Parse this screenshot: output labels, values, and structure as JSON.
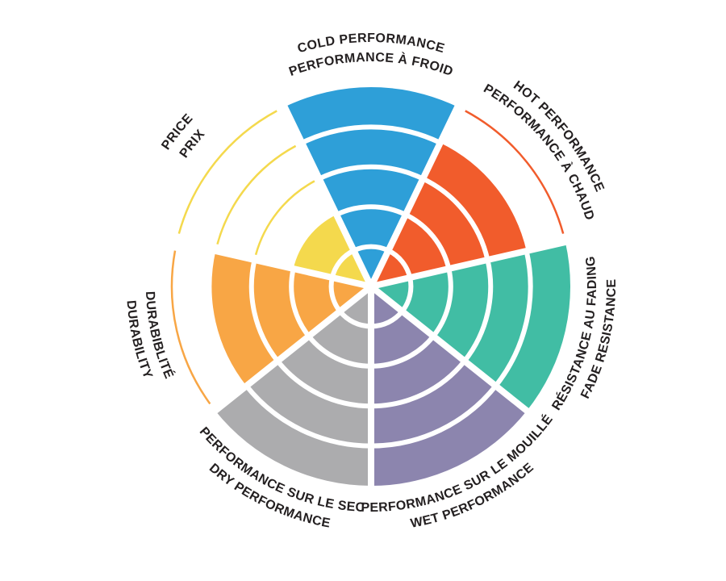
{
  "page": {
    "background": "#FFFFFF"
  },
  "chart_data": {
    "type": "polar-bar",
    "polar": true,
    "title": "",
    "max_rings": 5,
    "start_angle_deg": 90,
    "direction": "clockwise",
    "grid": "white concentric ring separators inside filled wedges; unfilled ring levels drawn as thin colored arcs",
    "legend_position": "radial bilingual labels around circle (english outer line, french inner line)",
    "label_text_color": "#231F20",
    "separator_color": "#FFFFFF",
    "categories": [
      {
        "key": "cold",
        "label_en": "COLD PERFORMANCE",
        "label_fr": "PERFORMANCE À FROID",
        "value": 5,
        "color": "#2E9FD8"
      },
      {
        "key": "hot",
        "label_en": "HOT PERFORMANCE",
        "label_fr": "PERFORMANCE À CHAUD",
        "value": 4,
        "color": "#F15C2C"
      },
      {
        "key": "fade",
        "label_en": "FADE RESISTANCE",
        "label_fr": "RÉSISTANCE AU FADING",
        "value": 5,
        "color": "#41BDA4"
      },
      {
        "key": "wet",
        "label_en": "WET PERFORMANCE",
        "label_fr": "PERFORMANCE SUR LE MOUILLÉ",
        "value": 5,
        "color": "#8C85AE"
      },
      {
        "key": "dry",
        "label_en": "DRY PERFORMANCE",
        "label_fr": "PERFORMANCE SUR LE SEC",
        "value": 5,
        "color": "#ACACAE"
      },
      {
        "key": "durability",
        "label_en": "DURABILITY",
        "label_fr": "DURABIBLITÉ",
        "value": 4,
        "color": "#F8A645"
      },
      {
        "key": "price",
        "label_en": "PRICE",
        "label_fr": "PRIX",
        "value": 2,
        "color": "#F4D94D"
      }
    ]
  }
}
